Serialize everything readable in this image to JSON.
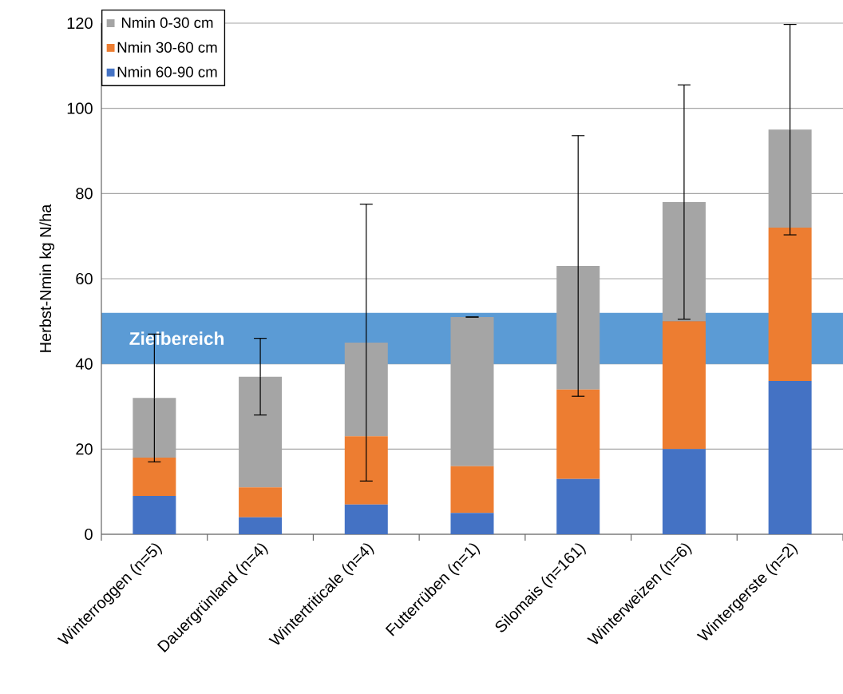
{
  "chart_data": {
    "type": "bar",
    "stacked": true,
    "ylabel": "Herbst-Nmin kg N/ha",
    "categories": [
      "Winterroggen (n=5)",
      "Dauergrünland (n=4)",
      "Wintertriticale (n=4)",
      "Futterrüben (n=1)",
      "Silomais (n=161)",
      "Winterweizen (n=6)",
      "Wintergerste (n=2)"
    ],
    "series": [
      {
        "name": "Nmin 60-90 cm",
        "color": "#4472c4",
        "values": [
          9,
          4,
          7,
          5,
          13,
          20,
          36
        ]
      },
      {
        "name": "Nmin 30-60 cm",
        "color": "#ed7d31",
        "values": [
          9,
          7,
          16,
          11,
          21,
          30,
          36
        ]
      },
      {
        "name": "Nmin 0-30 cm",
        "color": "#a5a5a5",
        "values": [
          14,
          26,
          22,
          35,
          29,
          28,
          23
        ],
        "errors": [
          15,
          9,
          32.5,
          0,
          30.6,
          27.5,
          24.7
        ]
      }
    ],
    "ylim": [
      0,
      120
    ],
    "yticks": [
      0,
      20,
      40,
      60,
      80,
      100,
      120
    ],
    "bands": [
      {
        "axis": "y",
        "from": 40,
        "to": 52,
        "label": "Zielbereich",
        "color": "#5b9bd5"
      }
    ],
    "grid": "y",
    "legend": "top left"
  }
}
